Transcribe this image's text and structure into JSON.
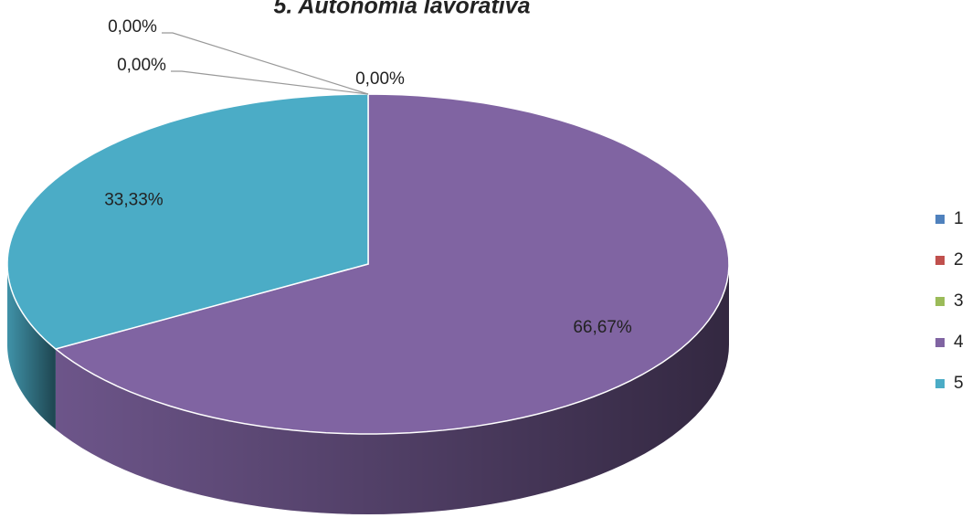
{
  "chart_data": {
    "type": "pie3d",
    "title": "5. Autonomia lavorativa",
    "categories": [
      "1",
      "2",
      "3",
      "4",
      "5"
    ],
    "values": [
      0,
      0,
      0,
      66.67,
      33.33
    ],
    "value_labels": [
      "0,00%",
      "0,00%",
      "0,00%",
      "66,67%",
      "33,33%"
    ],
    "colors": [
      "#4f81bd",
      "#c0504d",
      "#9bbb59",
      "#8064a2",
      "#4bacc6"
    ],
    "legend": "right"
  }
}
